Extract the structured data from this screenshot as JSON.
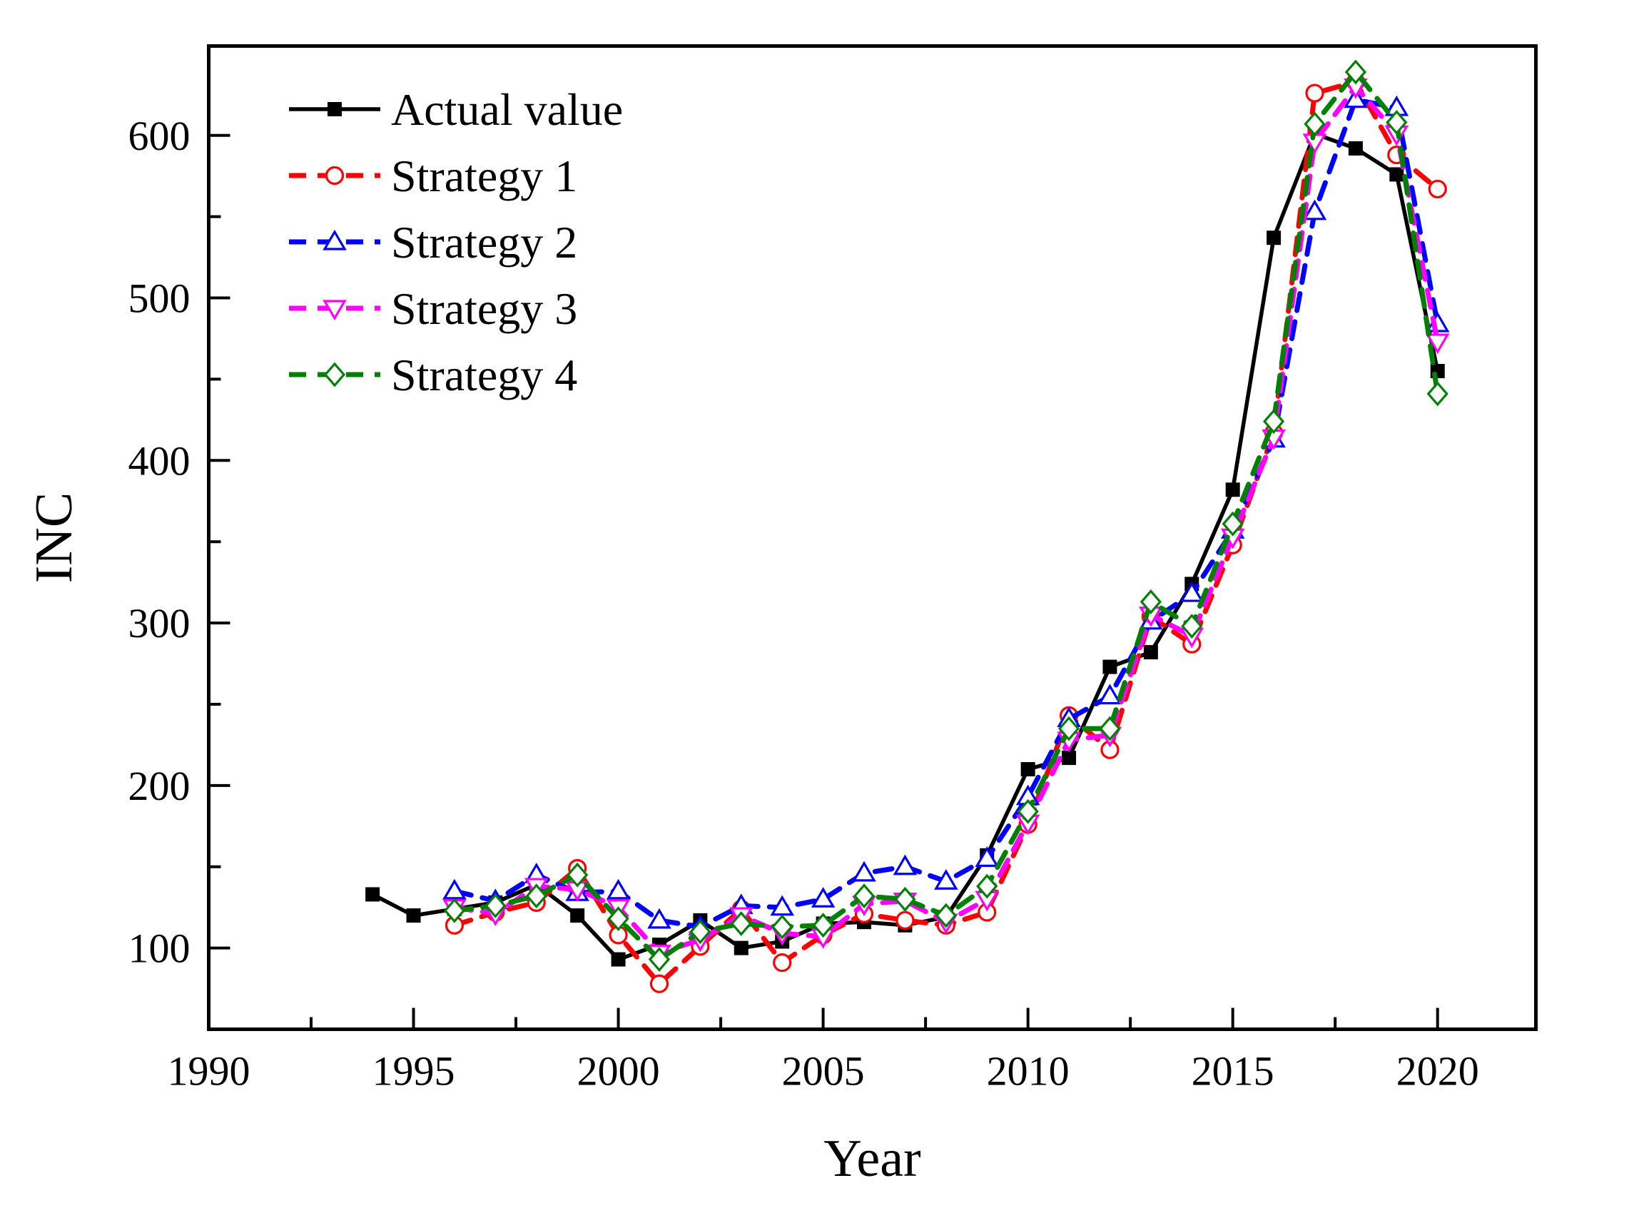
{
  "figure": {
    "background": "#ffffff",
    "frame_color": "#000000",
    "tick_direction": "in"
  },
  "chart_data": {
    "type": "line",
    "title": "",
    "xlabel": "Year",
    "ylabel": "INC",
    "xlim": [
      1990,
      2022.4
    ],
    "ylim": [
      50,
      655
    ],
    "grid": false,
    "legend_position": "upper-left",
    "x_major_ticks": [
      1990,
      1995,
      2000,
      2005,
      2010,
      2015,
      2020
    ],
    "x_minor_ticks": [
      1992.5,
      1997.5,
      2002.5,
      2007.5,
      2012.5,
      2017.5
    ],
    "y_major_ticks": [
      100,
      200,
      300,
      400,
      500,
      600
    ],
    "y_minor_ticks": [
      150,
      250,
      350,
      450,
      550
    ],
    "series": [
      {
        "name": "Actual value",
        "color": "#000000",
        "line_style": "solid",
        "marker": "square-filled",
        "x": [
          1994,
          1995,
          1996,
          1997,
          1998,
          1999,
          2000,
          2001,
          2002,
          2003,
          2004,
          2005,
          2006,
          2007,
          2008,
          2009,
          2010,
          2011,
          2012,
          2013,
          2014,
          2015,
          2016,
          2017,
          2018,
          2019,
          2020
        ],
        "values": [
          133,
          120,
          124,
          128,
          139,
          120,
          93,
          102,
          117,
          100,
          104,
          115,
          116,
          114,
          119,
          157,
          210,
          217,
          273,
          282,
          324,
          382,
          537,
          601,
          592,
          576,
          455
        ]
      },
      {
        "name": "Strategy 1",
        "color": "#ff0000",
        "line_style": "dashed",
        "marker": "circle-open",
        "x": [
          1996,
          1997,
          1998,
          1999,
          2000,
          2001,
          2002,
          2003,
          2004,
          2005,
          2006,
          2007,
          2008,
          2009,
          2010,
          2011,
          2012,
          2013,
          2014,
          2015,
          2016,
          2017,
          2018,
          2019,
          2020
        ],
        "values": [
          114,
          122,
          128,
          149,
          108,
          78,
          101,
          124,
          91,
          108,
          121,
          117,
          114,
          122,
          176,
          243,
          222,
          304,
          287,
          348,
          417,
          626,
          633,
          588,
          567
        ]
      },
      {
        "name": "Strategy 2",
        "color": "#0000ff",
        "line_style": "dashed",
        "marker": "triangle-up-open",
        "x": [
          1996,
          1997,
          1998,
          1999,
          2000,
          2001,
          2002,
          2003,
          2004,
          2005,
          2006,
          2007,
          2008,
          2009,
          2010,
          2011,
          2012,
          2013,
          2014,
          2015,
          2016,
          2017,
          2018,
          2019,
          2020
        ],
        "values": [
          135,
          129,
          145,
          134,
          135,
          117,
          113,
          126,
          125,
          130,
          146,
          150,
          141,
          155,
          193,
          241,
          255,
          301,
          318,
          357,
          413,
          553,
          622,
          617,
          484
        ]
      },
      {
        "name": "Strategy 3",
        "color": "#ff00ff",
        "line_style": "dashed",
        "marker": "triangle-down-open",
        "x": [
          1996,
          1997,
          1998,
          1999,
          2000,
          2001,
          2002,
          2003,
          2004,
          2005,
          2006,
          2007,
          2008,
          2009,
          2010,
          2011,
          2012,
          2013,
          2014,
          2015,
          2016,
          2017,
          2018,
          2019,
          2020
        ],
        "values": [
          125,
          121,
          138,
          136,
          125,
          97,
          105,
          120,
          109,
          107,
          127,
          129,
          116,
          130,
          177,
          228,
          231,
          305,
          292,
          353,
          414,
          596,
          630,
          601,
          473
        ]
      },
      {
        "name": "Strategy 4",
        "color": "#008000",
        "line_style": "dashed",
        "marker": "diamond-open",
        "x": [
          1996,
          1997,
          1998,
          1999,
          2000,
          2001,
          2002,
          2003,
          2004,
          2005,
          2006,
          2007,
          2008,
          2009,
          2010,
          2011,
          2012,
          2013,
          2014,
          2015,
          2016,
          2017,
          2018,
          2019,
          2020
        ],
        "values": [
          123,
          126,
          132,
          145,
          118,
          93,
          110,
          115,
          113,
          114,
          132,
          130,
          120,
          138,
          184,
          235,
          235,
          313,
          298,
          361,
          424,
          607,
          639,
          608,
          441
        ]
      }
    ]
  }
}
